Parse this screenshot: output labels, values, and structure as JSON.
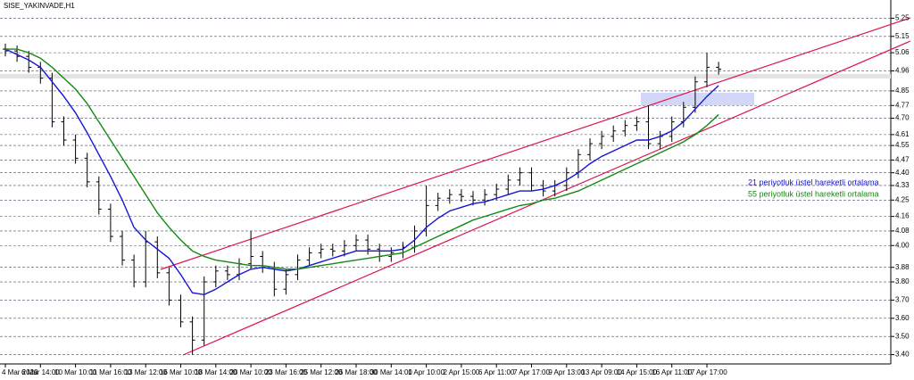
{
  "chart_data": {
    "type": "ohlc",
    "title": "SISE_YAKINVADE,H1",
    "xtick_labels": [
      "4 Mar 2020",
      "6 Mar 14:00",
      "10 Mar 10:00",
      "11 Mar 16:00",
      "13 Mar 12:00",
      "16 Mar 10:00",
      "18 Mar 14:00",
      "20 Mar 10:00",
      "23 Mar 16:00",
      "25 Mar 12:00",
      "26 Mar 18:00",
      "30 Mar 14:00",
      "1 Apr 10:00",
      "2 Apr 15:00",
      "6 Apr 11:00",
      "7 Apr 17:00",
      "9 Apr 13:00",
      "13 Apr 09:00",
      "14 Apr 15:00",
      "16 Apr 11:00",
      "17 Apr 17:00"
    ],
    "open": [
      5.08,
      5.07,
      5.04,
      4.98,
      4.92,
      4.68,
      4.58,
      4.48,
      4.35,
      4.2,
      4.05,
      3.92,
      3.8,
      4.02,
      3.85,
      3.7,
      3.58,
      3.48,
      3.8,
      3.86,
      3.84,
      3.9,
      3.94,
      3.88,
      3.76,
      3.84,
      3.92,
      3.96,
      3.98,
      3.97,
      4.0,
      4.03,
      3.98,
      3.94,
      3.96,
      3.99,
      4.08,
      4.22,
      4.26,
      4.28,
      4.27,
      4.25,
      4.28,
      4.31,
      4.36,
      4.4,
      4.33,
      4.3,
      4.33,
      4.4,
      4.5,
      4.56,
      4.6,
      4.63,
      4.66,
      4.68,
      4.56,
      4.6,
      4.68,
      4.76,
      4.9,
      4.98
    ],
    "high": [
      5.11,
      5.1,
      5.07,
      5.01,
      4.95,
      4.71,
      4.61,
      4.51,
      4.38,
      4.23,
      4.08,
      3.95,
      4.08,
      4.05,
      3.88,
      3.73,
      3.61,
      3.83,
      3.89,
      3.89,
      3.93,
      4.08,
      3.97,
      3.91,
      3.87,
      3.95,
      3.99,
      4.01,
      4.01,
      4.03,
      4.06,
      4.06,
      4.01,
      3.99,
      4.02,
      4.11,
      4.33,
      4.29,
      4.31,
      4.31,
      4.3,
      4.31,
      4.34,
      4.39,
      4.43,
      4.43,
      4.36,
      4.36,
      4.43,
      4.53,
      4.59,
      4.63,
      4.66,
      4.69,
      4.71,
      4.77,
      4.63,
      4.71,
      4.79,
      4.93,
      5.06,
      5.01
    ],
    "low": [
      5.04,
      5.01,
      4.95,
      4.89,
      4.65,
      4.55,
      4.45,
      4.32,
      4.17,
      4.02,
      3.89,
      3.77,
      3.77,
      3.82,
      3.67,
      3.55,
      3.4,
      3.45,
      3.77,
      3.81,
      3.81,
      3.87,
      3.85,
      3.72,
      3.73,
      3.81,
      3.89,
      3.93,
      3.94,
      3.94,
      3.97,
      3.95,
      3.91,
      3.91,
      3.93,
      3.96,
      4.05,
      4.19,
      4.23,
      4.24,
      4.22,
      4.22,
      4.25,
      4.28,
      4.33,
      4.3,
      4.27,
      4.27,
      4.3,
      4.37,
      4.47,
      4.53,
      4.57,
      4.6,
      4.63,
      4.53,
      4.53,
      4.57,
      4.65,
      4.73,
      4.87,
      4.94
    ],
    "close": [
      5.07,
      5.04,
      4.98,
      4.92,
      4.68,
      4.58,
      4.48,
      4.35,
      4.2,
      4.05,
      3.92,
      3.8,
      4.02,
      3.85,
      3.7,
      3.58,
      3.48,
      3.8,
      3.86,
      3.84,
      3.9,
      3.94,
      3.88,
      3.76,
      3.84,
      3.92,
      3.96,
      3.98,
      3.97,
      4.0,
      4.03,
      3.98,
      3.94,
      3.96,
      3.99,
      4.08,
      4.22,
      4.26,
      4.28,
      4.27,
      4.25,
      4.28,
      4.31,
      4.36,
      4.4,
      4.33,
      4.3,
      4.33,
      4.4,
      4.5,
      4.56,
      4.6,
      4.63,
      4.66,
      4.68,
      4.56,
      4.6,
      4.68,
      4.76,
      4.9,
      4.98,
      4.97
    ],
    "color": "#000000",
    "series": [
      {
        "name": "21 periyotluk üstel hareketli ortalama",
        "color": "#1515d8",
        "values": [
          5.08,
          5.05,
          5.02,
          4.98,
          4.9,
          4.82,
          4.73,
          4.62,
          4.5,
          4.38,
          4.25,
          4.1,
          4.03,
          3.98,
          3.93,
          3.84,
          3.74,
          3.73,
          3.76,
          3.8,
          3.84,
          3.87,
          3.88,
          3.87,
          3.86,
          3.87,
          3.89,
          3.91,
          3.93,
          3.95,
          3.97,
          3.97,
          3.97,
          3.97,
          3.98,
          4.03,
          4.1,
          4.15,
          4.19,
          4.21,
          4.23,
          4.24,
          4.26,
          4.28,
          4.3,
          4.3,
          4.31,
          4.33,
          4.36,
          4.4,
          4.45,
          4.49,
          4.52,
          4.55,
          4.58,
          4.58,
          4.6,
          4.63,
          4.68,
          4.75,
          4.82,
          4.88
        ]
      },
      {
        "name": "55 periyotluk üstel hareketli ortalama",
        "color": "#138a13",
        "values": [
          5.08,
          5.08,
          5.06,
          5.03,
          4.98,
          4.92,
          4.86,
          4.78,
          4.68,
          4.58,
          4.48,
          4.38,
          4.28,
          4.18,
          4.1,
          4.03,
          3.97,
          3.94,
          3.92,
          3.91,
          3.9,
          3.89,
          3.89,
          3.88,
          3.87,
          3.87,
          3.88,
          3.89,
          3.9,
          3.91,
          3.92,
          3.93,
          3.94,
          3.95,
          3.96,
          3.99,
          4.02,
          4.05,
          4.08,
          4.11,
          4.14,
          4.16,
          4.18,
          4.2,
          4.22,
          4.23,
          4.25,
          4.26,
          4.28,
          4.3,
          4.33,
          4.36,
          4.39,
          4.42,
          4.45,
          4.48,
          4.51,
          4.54,
          4.57,
          4.61,
          4.66,
          4.72
        ]
      }
    ],
    "ylim": [
      3.29,
      5.35
    ],
    "yticks": [
      5.25,
      5.15,
      5.06,
      4.96,
      4.85,
      4.77,
      {
        "value": 4.7,
        "label": "4.70"
      },
      4.61,
      4.55,
      4.47,
      {
        "value": 4.4,
        "label": "4.40"
      },
      4.33,
      4.25,
      4.16,
      4.08,
      {
        "value": 4,
        "label": "4.00"
      },
      3.88,
      {
        "value": 3.8,
        "label": "3.80"
      },
      {
        "value": 3.7,
        "label": "3.70"
      },
      {
        "value": 3.6,
        "label": "3.60"
      },
      {
        "value": 3.5,
        "label": "3.50"
      },
      {
        "value": 3.4,
        "label": "3.40"
      }
    ],
    "grid": true
  }
}
